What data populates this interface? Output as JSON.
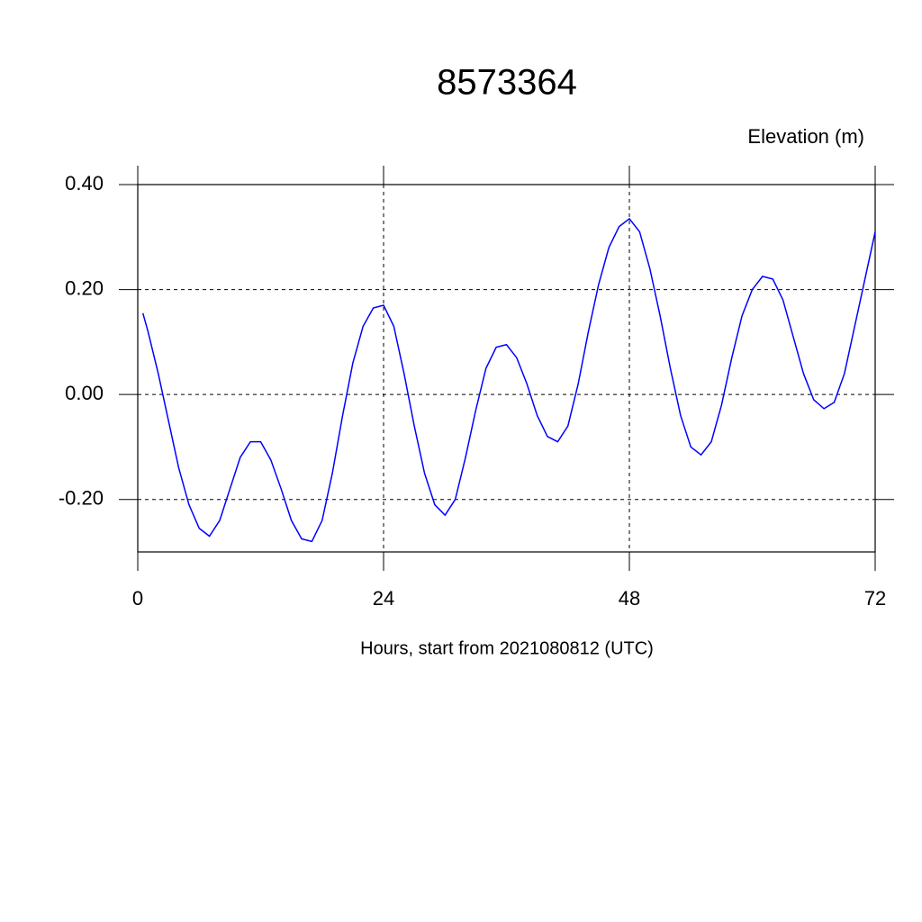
{
  "chart_data": {
    "type": "line",
    "title": "8573364",
    "y_axis_label": "Elevation (m)",
    "x_axis_label": "Hours, start from 2021080812 (UTC)",
    "x": [
      0.5,
      1,
      2,
      3,
      4,
      5,
      6,
      7,
      8,
      9,
      10,
      11,
      12,
      13,
      14,
      15,
      16,
      17,
      18,
      19,
      20,
      21,
      22,
      23,
      24,
      25,
      26,
      27,
      28,
      29,
      30,
      31,
      32,
      33,
      34,
      35,
      36,
      37,
      38,
      39,
      40,
      41,
      42,
      43,
      44,
      45,
      46,
      47,
      48,
      49,
      50,
      51,
      52,
      53,
      54,
      55,
      56,
      57,
      58,
      59,
      60,
      61,
      62,
      63,
      64,
      65,
      66,
      67,
      68,
      69,
      70,
      71,
      72
    ],
    "series": [
      {
        "color": "#0000ff",
        "values": [
          0.155,
          0.12,
          0.04,
          -0.05,
          -0.14,
          -0.21,
          -0.255,
          -0.27,
          -0.24,
          -0.18,
          -0.12,
          -0.09,
          -0.09,
          -0.125,
          -0.18,
          -0.24,
          -0.275,
          -0.28,
          -0.24,
          -0.15,
          -0.04,
          0.06,
          0.13,
          0.165,
          0.17,
          0.13,
          0.04,
          -0.06,
          -0.15,
          -0.21,
          -0.23,
          -0.2,
          -0.12,
          -0.03,
          0.05,
          0.09,
          0.095,
          0.07,
          0.02,
          -0.04,
          -0.08,
          -0.09,
          -0.06,
          0.02,
          0.12,
          0.21,
          0.28,
          0.32,
          0.335,
          0.31,
          0.24,
          0.15,
          0.05,
          -0.04,
          -0.1,
          -0.115,
          -0.09,
          -0.02,
          0.07,
          0.15,
          0.2,
          0.225,
          0.22,
          0.18,
          0.11,
          0.04,
          -0.01,
          -0.027,
          -0.015,
          0.04,
          0.13,
          0.22,
          0.31
        ]
      }
    ],
    "xlim": [
      0,
      72
    ],
    "ylim": [
      -0.3,
      0.4
    ],
    "xticks": [
      0,
      24,
      48,
      72
    ],
    "yticks": [
      {
        "value": -0.2,
        "label": "-0.20"
      },
      {
        "value": 0,
        "label": "0.00"
      },
      {
        "value": 0.2,
        "label": "0.20"
      },
      {
        "value": 0.4,
        "label": "0.40"
      }
    ],
    "grid": true
  }
}
